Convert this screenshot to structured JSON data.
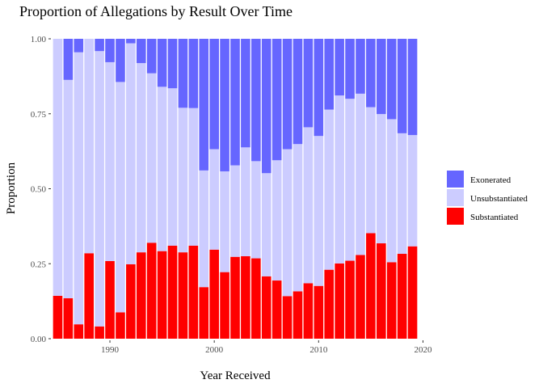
{
  "chart_data": {
    "type": "bar",
    "stacked": true,
    "title": "Proportion of Allegations by Result Over Time",
    "xlabel": "Year Received",
    "ylabel": "Proportion",
    "xlim": [
      1984.5,
      2019.5
    ],
    "ylim": [
      0,
      1
    ],
    "x_ticks": [
      1990,
      2000,
      2010,
      2020
    ],
    "y_ticks": [
      0,
      0.25,
      0.5,
      0.75,
      1
    ],
    "y_tick_labels": [
      "0.00",
      "0.25",
      "0.50",
      "0.75",
      "1.00"
    ],
    "grid": false,
    "legend_position": "right",
    "categories": [
      1985,
      1986,
      1987,
      1988,
      1989,
      1990,
      1991,
      1992,
      1993,
      1994,
      1995,
      1996,
      1997,
      1998,
      1999,
      2000,
      2001,
      2002,
      2003,
      2004,
      2005,
      2006,
      2007,
      2008,
      2009,
      2010,
      2011,
      2012,
      2013,
      2014,
      2015,
      2016,
      2017,
      2018,
      2019
    ],
    "series": [
      {
        "name": "Substantiated",
        "color": "#ff0000",
        "values": [
          0.143,
          0.135,
          0.048,
          0.285,
          0.041,
          0.259,
          0.088,
          0.248,
          0.288,
          0.32,
          0.292,
          0.31,
          0.288,
          0.31,
          0.172,
          0.297,
          0.222,
          0.273,
          0.275,
          0.268,
          0.208,
          0.194,
          0.142,
          0.158,
          0.185,
          0.176,
          0.23,
          0.251,
          0.26,
          0.279,
          0.352,
          0.318,
          0.255,
          0.283,
          0.308
        ]
      },
      {
        "name": "Unsubstantiated",
        "color": "#ccccff",
        "values": [
          0.857,
          0.728,
          0.907,
          0.715,
          0.918,
          0.663,
          0.768,
          0.737,
          0.631,
          0.565,
          0.548,
          0.525,
          0.482,
          0.459,
          0.389,
          0.335,
          0.336,
          0.305,
          0.363,
          0.324,
          0.344,
          0.401,
          0.49,
          0.491,
          0.52,
          0.5,
          0.534,
          0.56,
          0.54,
          0.538,
          0.42,
          0.431,
          0.477,
          0.402,
          0.371
        ]
      },
      {
        "name": "Exonerated",
        "color": "#6666ff",
        "values": [
          0.0,
          0.137,
          0.045,
          0.0,
          0.041,
          0.078,
          0.144,
          0.015,
          0.081,
          0.115,
          0.16,
          0.165,
          0.23,
          0.231,
          0.439,
          0.368,
          0.442,
          0.422,
          0.362,
          0.408,
          0.448,
          0.405,
          0.368,
          0.351,
          0.295,
          0.324,
          0.236,
          0.189,
          0.2,
          0.183,
          0.228,
          0.251,
          0.268,
          0.315,
          0.321
        ]
      }
    ],
    "legend_order": [
      "Exonerated",
      "Unsubstantiated",
      "Substantiated"
    ]
  }
}
